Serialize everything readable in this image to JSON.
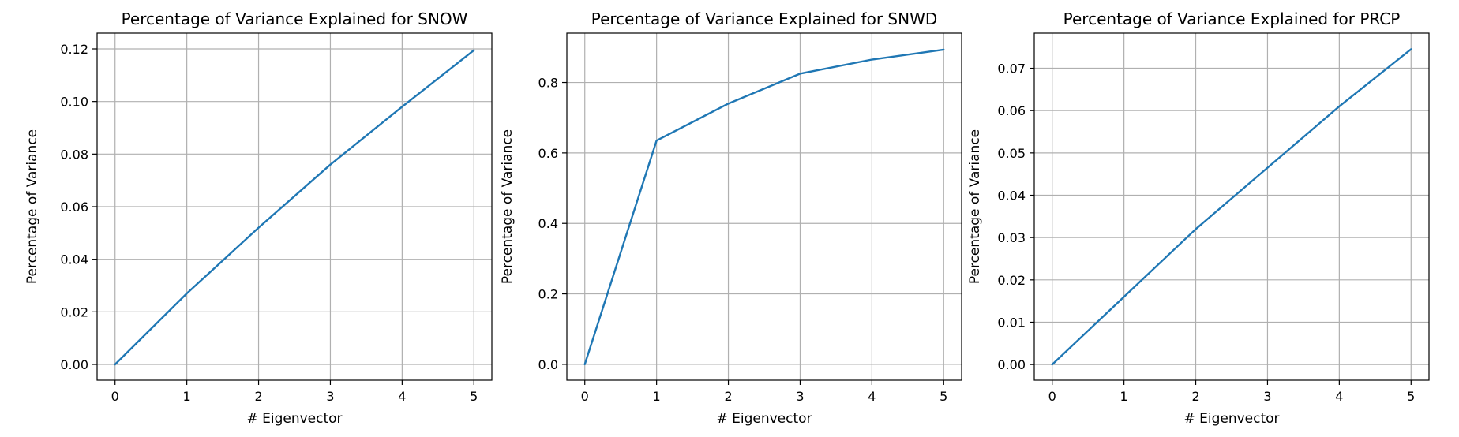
{
  "colors": {
    "line": "#1f77b4",
    "grid": "#b0b0b0"
  },
  "chart_data": [
    {
      "type": "line",
      "title": "Percentage of Variance Explained for SNOW",
      "xlabel": "# Eigenvector",
      "ylabel": "Percentage of Variance",
      "x": [
        0,
        1,
        2,
        3,
        4,
        5
      ],
      "xticks": [
        0,
        1,
        2,
        3,
        4,
        5
      ],
      "xlim": [
        -0.25,
        5.25
      ],
      "ylim": [
        -0.006,
        0.126
      ],
      "yticks": [
        0.0,
        0.02,
        0.04,
        0.06,
        0.08,
        0.1,
        0.12
      ],
      "ytick_labels": [
        "0.00",
        "0.02",
        "0.04",
        "0.06",
        "0.08",
        "0.10",
        "0.12"
      ],
      "grid": true,
      "series": [
        {
          "values": [
            0.0,
            0.027,
            0.052,
            0.076,
            0.098,
            0.1195
          ]
        }
      ]
    },
    {
      "type": "line",
      "title": "Percentage of Variance Explained for SNWD",
      "xlabel": "# Eigenvector",
      "ylabel": "Percentage of Variance",
      "x": [
        0,
        1,
        2,
        3,
        4,
        5
      ],
      "xticks": [
        0,
        1,
        2,
        3,
        4,
        5
      ],
      "xlim": [
        -0.25,
        5.25
      ],
      "ylim": [
        -0.045,
        0.94
      ],
      "yticks": [
        0.0,
        0.2,
        0.4,
        0.6,
        0.8
      ],
      "ytick_labels": [
        "0.0",
        "0.2",
        "0.4",
        "0.6",
        "0.8"
      ],
      "grid": true,
      "series": [
        {
          "values": [
            0.0,
            0.635,
            0.74,
            0.825,
            0.865,
            0.893
          ]
        }
      ]
    },
    {
      "type": "line",
      "title": "Percentage of Variance Explained for PRCP",
      "xlabel": "# Eigenvector",
      "ylabel": "Percentage of Variance",
      "x": [
        0,
        1,
        2,
        3,
        4,
        5
      ],
      "xticks": [
        0,
        1,
        2,
        3,
        4,
        5
      ],
      "xlim": [
        -0.25,
        5.25
      ],
      "ylim": [
        -0.0037,
        0.0783
      ],
      "yticks": [
        0.0,
        0.01,
        0.02,
        0.03,
        0.04,
        0.05,
        0.06,
        0.07
      ],
      "ytick_labels": [
        "0.00",
        "0.01",
        "0.02",
        "0.03",
        "0.04",
        "0.05",
        "0.06",
        "0.07"
      ],
      "grid": true,
      "series": [
        {
          "values": [
            0.0,
            0.016,
            0.032,
            0.0465,
            0.061,
            0.0745
          ]
        }
      ]
    }
  ]
}
